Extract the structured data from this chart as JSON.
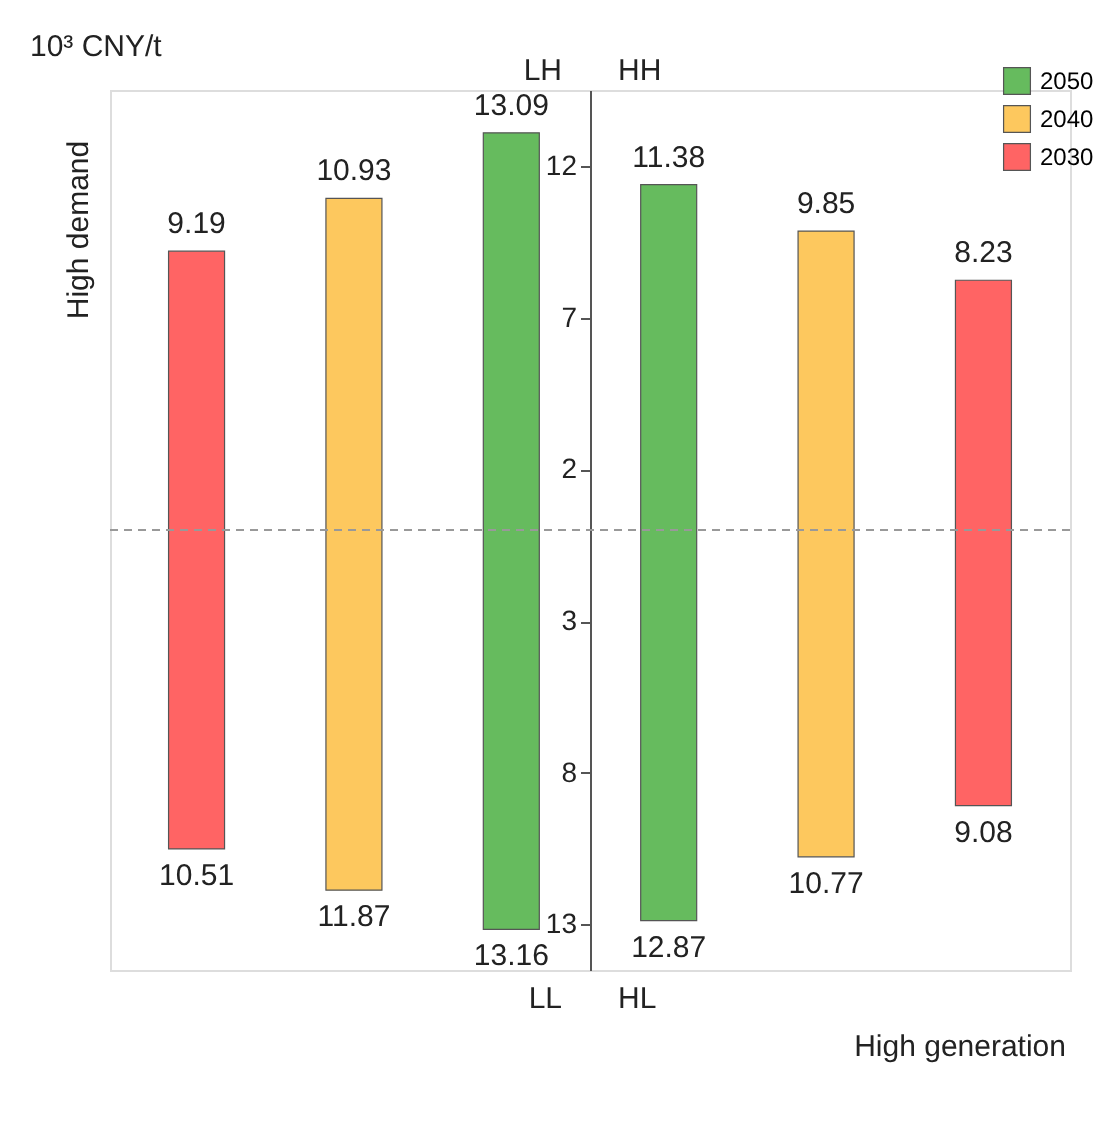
{
  "chart_data": {
    "type": "bar",
    "ylabel": "10³ CNY/t",
    "categories": [
      null,
      null,
      null,
      null,
      null,
      null
    ],
    "series": [
      {
        "name": "2050",
        "color": "#66bb5e",
        "values": [
          null,
          null,
          26.25,
          24.25,
          null,
          null
        ],
        "base": [
          null,
          null,
          -13.16,
          -12.87,
          null,
          null
        ]
      },
      {
        "name": "2040",
        "color": "#fdc85e",
        "values": [
          null,
          22.8,
          null,
          null,
          20.62,
          null
        ],
        "base": [
          null,
          -11.87,
          null,
          null,
          -10.77,
          null
        ]
      },
      {
        "name": "2030",
        "color": "#ff6464",
        "values": [
          19.7,
          null,
          null,
          null,
          null,
          17.31
        ],
        "base": [
          -10.51,
          null,
          null,
          null,
          null,
          -9.08
        ]
      }
    ],
    "ylim": [
      -14.5,
      14.5
    ],
    "yticks": [
      12,
      7,
      2,
      {
        "value": -3,
        "label": "3"
      },
      {
        "value": -8,
        "label": "8"
      },
      {
        "value": -13,
        "label": "13"
      }
    ],
    "ref_lines": [
      {
        "axis": "y",
        "value": 0,
        "line_style": "dashed",
        "color": "#999999"
      }
    ],
    "legend": "top right",
    "tick_labels": "y",
    "annotations": [
      "LH",
      "HH",
      "LL",
      "HL",
      "High demand",
      "High generation",
      {
        "text": "9.19",
        "y": 9.19
      },
      {
        "text": "10.51",
        "y": -10.51
      },
      {
        "text": "10.93",
        "y": 10.93
      },
      {
        "text": "11.87",
        "y": -11.87
      },
      {
        "text": "13.09",
        "y": 13.09
      },
      {
        "text": "13.16",
        "y": -13.16
      },
      {
        "text": "11.38",
        "y": 11.38
      },
      {
        "text": "12.87",
        "y": -12.87
      },
      {
        "text": "9.85",
        "y": 9.85
      },
      {
        "text": "10.77",
        "y": -10.77
      },
      {
        "text": "8.23",
        "y": 8.23
      },
      {
        "text": "9.08",
        "y": -9.08
      }
    ]
  }
}
